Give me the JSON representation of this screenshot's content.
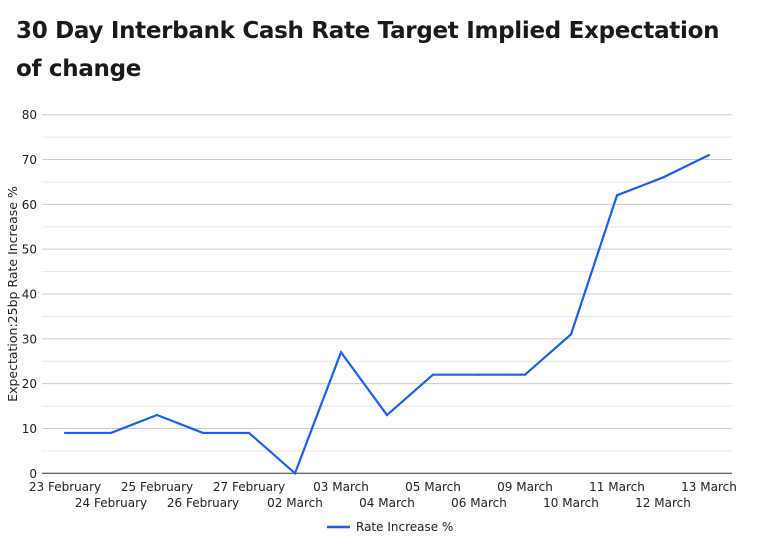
{
  "chart_data": {
    "type": "line",
    "title": "30 Day Interbank Cash Rate Target Implied Expectation of change",
    "xlabel": "",
    "ylabel": "Expectation:25bp Rate Increase %",
    "ylim": [
      0,
      80
    ],
    "yticks": [
      0,
      10,
      20,
      30,
      40,
      50,
      60,
      70,
      80
    ],
    "minor_grid_step": 5,
    "grid": true,
    "legend_position": "bottom",
    "categories": [
      "23 February",
      "24 February",
      "25 February",
      "26 February",
      "27 February",
      "02 March",
      "03 March",
      "04 March",
      "05 March",
      "06 March",
      "09 March",
      "10 March",
      "11 March",
      "12 March",
      "13 March"
    ],
    "series": [
      {
        "name": "Rate Increase %",
        "color": "#1a5ff5",
        "values": [
          9,
          9,
          13,
          9,
          9,
          0,
          27,
          13,
          22,
          22,
          22,
          31,
          62,
          66,
          71
        ]
      }
    ]
  }
}
